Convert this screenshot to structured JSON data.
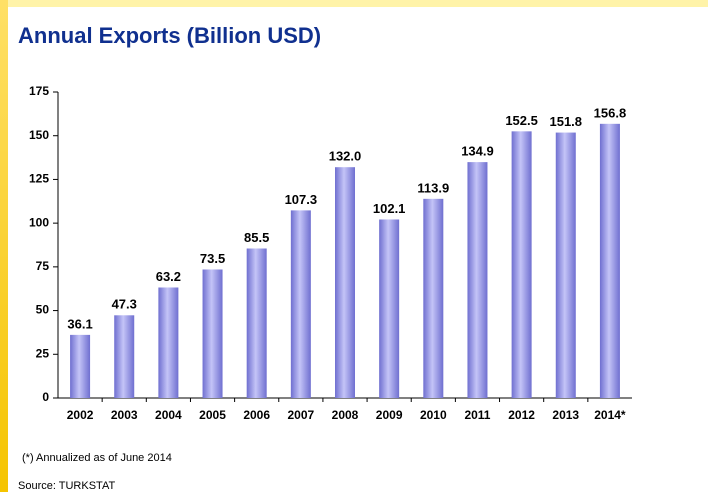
{
  "chart_data": {
    "type": "bar",
    "title": "Annual Exports (Billion USD)",
    "categories": [
      "2002",
      "2003",
      "2004",
      "2005",
      "2006",
      "2007",
      "2008",
      "2009",
      "2010",
      "2011",
      "2012",
      "2013",
      "2014*"
    ],
    "values": [
      36.1,
      47.3,
      63.2,
      73.5,
      85.5,
      107.3,
      132.0,
      102.1,
      113.9,
      134.9,
      152.5,
      151.8,
      156.8
    ],
    "value_labels": [
      "36.1",
      "47.3",
      "63.2",
      "73.5",
      "85.5",
      "107.3",
      "132.0",
      "102.1",
      "113.9",
      "134.9",
      "152.5",
      "151.8",
      "156.8"
    ],
    "color": "#6f6fd0",
    "ylim": [
      0,
      175
    ],
    "yticks": [
      0,
      25,
      50,
      75,
      100,
      125,
      150,
      175
    ],
    "grid": false,
    "footnote": "(*) Annualized as of June 2014",
    "source": "Source: TURKSTAT"
  }
}
